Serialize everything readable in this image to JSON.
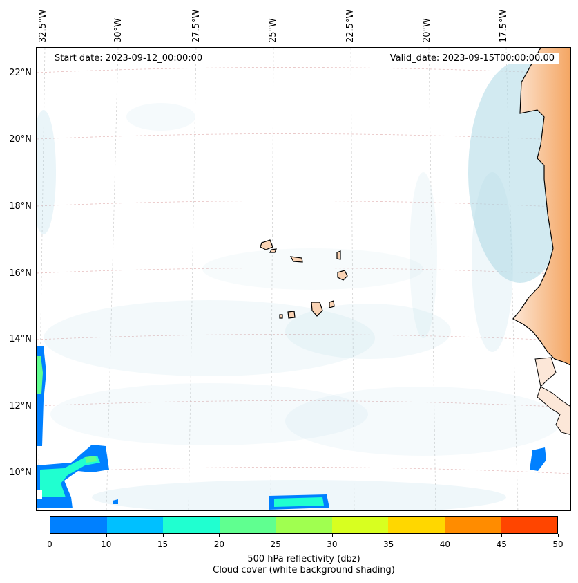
{
  "map": {
    "start_date": "Start date: 2023-09-12_00:00:00",
    "valid_date": "Valid_date: 2023-09-15T00:00:00.00",
    "longitude_labels": [
      "32.5°W",
      "30°W",
      "27.5°W",
      "25°W",
      "22.5°W",
      "20°W",
      "17.5°W"
    ],
    "latitude_labels": [
      "22°N",
      "20°N",
      "18°N",
      "16°N",
      "14°N",
      "12°N",
      "10°N"
    ],
    "colors": {
      "land": "#f4a460",
      "cloud_cover": "#add8e6",
      "coastline": "#000000",
      "gridline": "#c8c8c8"
    }
  },
  "colorbar": {
    "ticks": [
      "0",
      "10",
      "15",
      "20",
      "25",
      "30",
      "35",
      "40",
      "45",
      "50"
    ],
    "colors": [
      "#0080ff",
      "#00c0ff",
      "#20ffd0",
      "#60ff90",
      "#a0ff50",
      "#d8ff20",
      "#ffd700",
      "#ff8c00",
      "#ff4500"
    ],
    "caption_line1": "500 hPa reflectivity (dbz)",
    "caption_line2": "Cloud cover (white background shading)"
  }
}
